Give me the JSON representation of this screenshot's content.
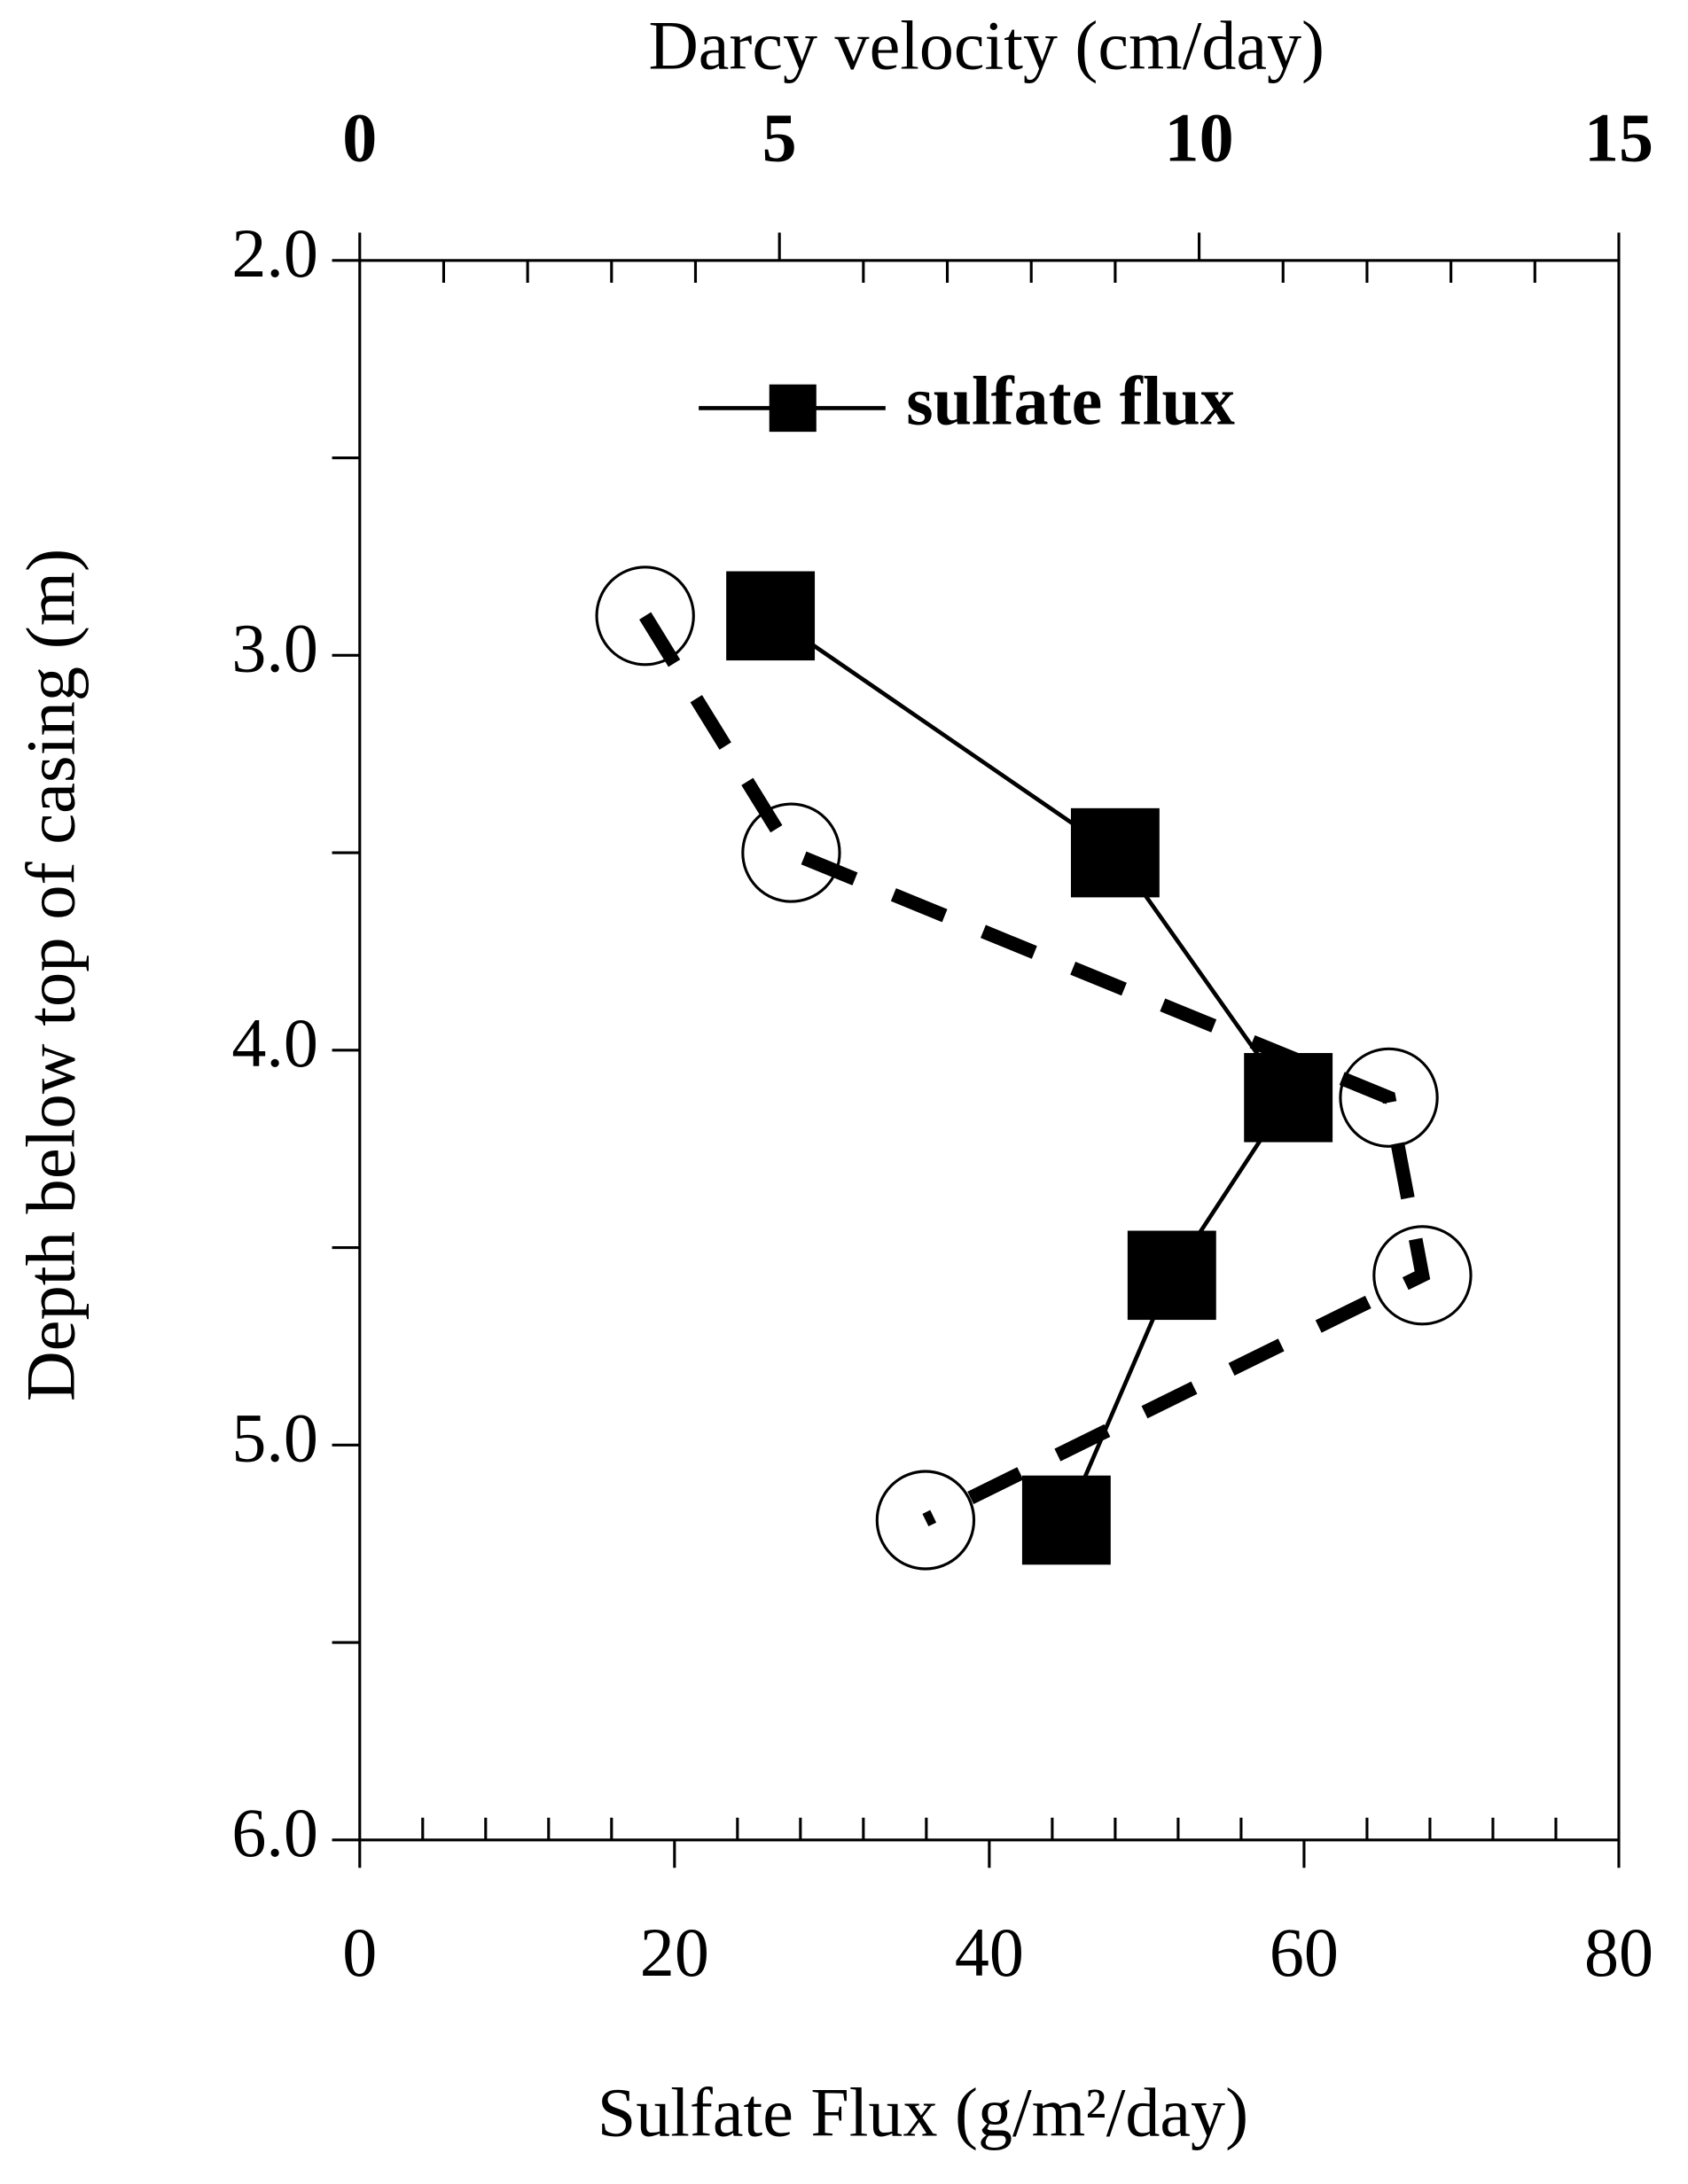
{
  "chart_data": {
    "type": "line",
    "ylabel": "Depth below top of casing (m)",
    "xlabel": "Sulfate Flux (g/m²/day)",
    "x2label": "Darcy velocity (cm/day)",
    "ylim": [
      2.0,
      6.0
    ],
    "y_inverted": true,
    "yticks": [
      {
        "value": 2,
        "label": "2.0"
      },
      {
        "value": 3,
        "label": "3.0"
      },
      {
        "value": 4,
        "label": "4.0"
      },
      {
        "value": 5,
        "label": "5.0"
      },
      {
        "value": 6,
        "label": "6.0"
      }
    ],
    "yminorticks": [
      2.5,
      3.5,
      4.5,
      5.5
    ],
    "xlim": [
      0,
      80
    ],
    "xticks": [
      0,
      20,
      40,
      60,
      80
    ],
    "xminorticks": [
      4,
      8,
      12,
      16,
      24,
      28,
      32,
      36,
      44,
      48,
      52,
      56,
      64,
      68,
      72,
      76
    ],
    "x2lim": [
      0,
      15
    ],
    "x2ticks": [
      0,
      5,
      10,
      15
    ],
    "x2minorticks": [
      1,
      2,
      3,
      4,
      6,
      7,
      8,
      9,
      11,
      12,
      13,
      14
    ],
    "series": [
      {
        "name": "sulfate flux",
        "color": "#000000",
        "marker": "square",
        "axis": "x",
        "x": [
          26.1,
          48.0,
          59.0,
          51.6,
          44.9
        ],
        "values": [
          2.9,
          3.5,
          4.12,
          4.57,
          5.19
        ]
      },
      {
        "color": "#000000",
        "marker": "circle",
        "dashed": true,
        "axis": "x2",
        "x": [
          3.4,
          5.14,
          12.26,
          12.66,
          6.74
        ],
        "values": [
          2.9,
          3.5,
          4.12,
          4.57,
          5.19
        ]
      }
    ]
  }
}
